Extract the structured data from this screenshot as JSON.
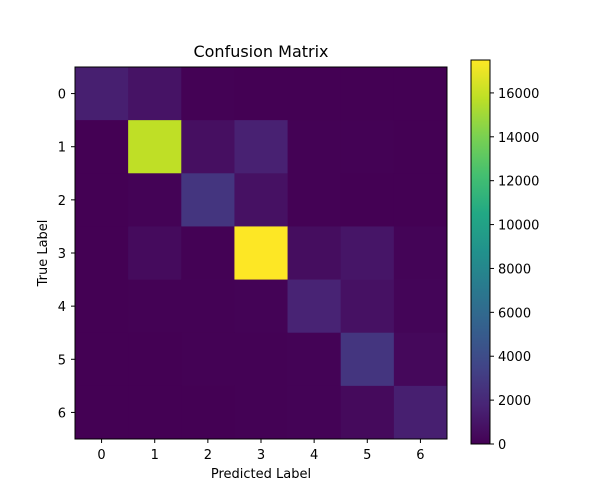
{
  "chart_data": {
    "type": "heatmap",
    "title": "Confusion Matrix",
    "xlabel": "Predicted Label",
    "ylabel": "True Label",
    "x_categories": [
      "0",
      "1",
      "2",
      "3",
      "4",
      "5",
      "6"
    ],
    "y_categories": [
      "0",
      "1",
      "2",
      "3",
      "4",
      "5",
      "6"
    ],
    "values": [
      [
        1500,
        900,
        50,
        20,
        10,
        10,
        5
      ],
      [
        20,
        15800,
        700,
        1600,
        50,
        40,
        10
      ],
      [
        10,
        100,
        2700,
        800,
        30,
        20,
        10
      ],
      [
        20,
        500,
        60,
        17500,
        600,
        1000,
        150
      ],
      [
        10,
        30,
        40,
        80,
        1700,
        800,
        200
      ],
      [
        10,
        20,
        30,
        60,
        100,
        2700,
        350
      ],
      [
        5,
        10,
        20,
        30,
        80,
        450,
        1500
      ]
    ],
    "colormap": "viridis",
    "colorbar": {
      "min": 0,
      "max": 17500,
      "ticks": [
        0,
        2000,
        4000,
        6000,
        8000,
        10000,
        12000,
        14000,
        16000
      ]
    },
    "grid": false
  }
}
